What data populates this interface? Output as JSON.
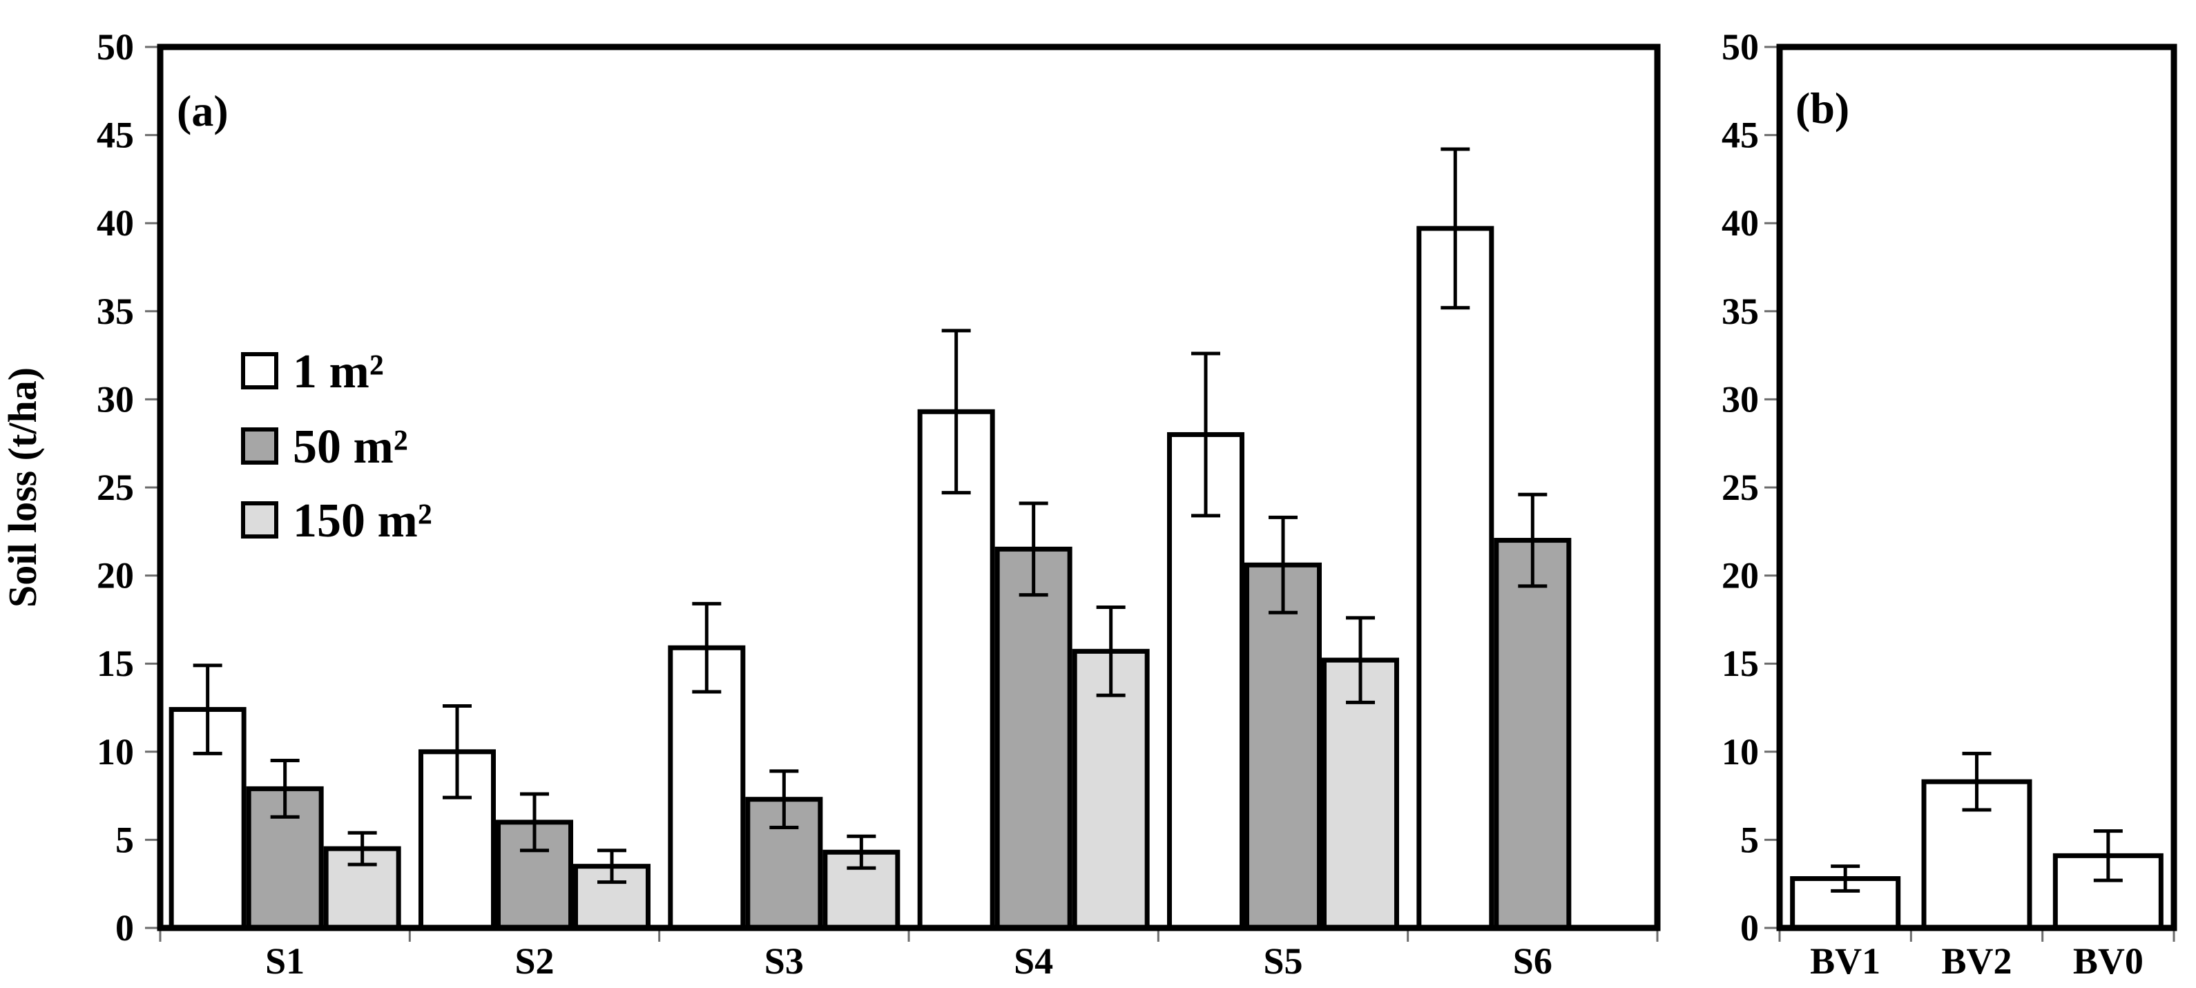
{
  "figure": {
    "y_axis_title": "Soil loss (t/ha)",
    "panel_a_label": "(a)",
    "panel_b_label": "(b)"
  },
  "legend": {
    "items": [
      {
        "label": "1 m²",
        "color": "#ffffff"
      },
      {
        "label": "50 m²",
        "color": "#a6a6a6"
      },
      {
        "label": "150 m²",
        "color": "#dcdcdc"
      }
    ]
  },
  "colors": {
    "bar_border": "#000000",
    "axis": "#000000",
    "tick": "#6b6b6b",
    "white_bar": "#ffffff",
    "gray_bar": "#a6a6a6",
    "light_gray_bar": "#dcdcdc"
  },
  "chart_data": [
    {
      "id": "a",
      "type": "bar",
      "panel_label": "(a)",
      "title": "",
      "xlabel": "",
      "ylabel": "Soil loss (t/ha)",
      "ylim": [
        0,
        50
      ],
      "ytick_step": 5,
      "grid": false,
      "legend_position": "inside-top-left",
      "categories": [
        "S1",
        "S2",
        "S3",
        "S4",
        "S5",
        "S6"
      ],
      "series": [
        {
          "name": "1 m²",
          "fill": "#ffffff",
          "values": [
            12.4,
            10.0,
            15.9,
            29.3,
            28.0,
            39.7
          ],
          "errors": [
            2.5,
            2.6,
            2.5,
            4.6,
            4.6,
            4.5
          ]
        },
        {
          "name": "50 m²",
          "fill": "#a6a6a6",
          "values": [
            7.9,
            6.0,
            7.3,
            21.5,
            20.6,
            22.0
          ],
          "errors": [
            1.6,
            1.6,
            1.6,
            2.6,
            2.7,
            2.6
          ]
        },
        {
          "name": "150 m²",
          "fill": "#dcdcdc",
          "values": [
            4.5,
            3.5,
            4.3,
            15.7,
            15.2,
            null
          ],
          "errors": [
            0.9,
            0.9,
            0.9,
            2.5,
            2.4,
            null
          ]
        }
      ]
    },
    {
      "id": "b",
      "type": "bar",
      "panel_label": "(b)",
      "title": "",
      "xlabel": "",
      "ylabel": "",
      "ylim": [
        0,
        50
      ],
      "ytick_step": 5,
      "grid": false,
      "legend_position": "none",
      "categories": [
        "BV1",
        "BV2",
        "BV0"
      ],
      "series": [
        {
          "name": "1 m²",
          "fill": "#ffffff",
          "values": [
            2.8,
            8.3,
            4.1
          ],
          "errors": [
            0.7,
            1.6,
            1.4
          ]
        }
      ]
    }
  ]
}
